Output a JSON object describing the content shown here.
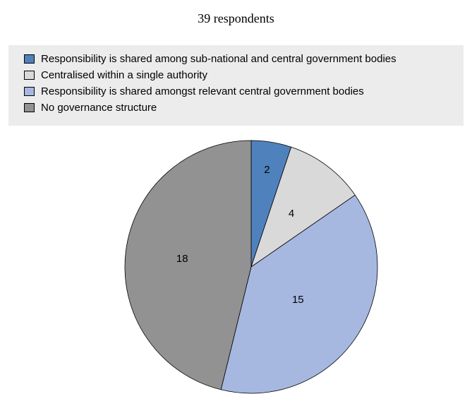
{
  "chart_data": {
    "type": "pie",
    "title": "39 respondents",
    "legend_position": "top",
    "slices": [
      {
        "label": "Responsibility is shared among sub-national and central government bodies",
        "value": 2,
        "color": "#4f81bd"
      },
      {
        "label": "Centralised within a single authority",
        "value": 4,
        "color": "#d9d9d9"
      },
      {
        "label": "Responsibility is shared amongst relevant central government bodies",
        "value": 15,
        "color": "#a6b8e0"
      },
      {
        "label": "No governance structure",
        "value": 18,
        "color": "#929292"
      }
    ]
  }
}
